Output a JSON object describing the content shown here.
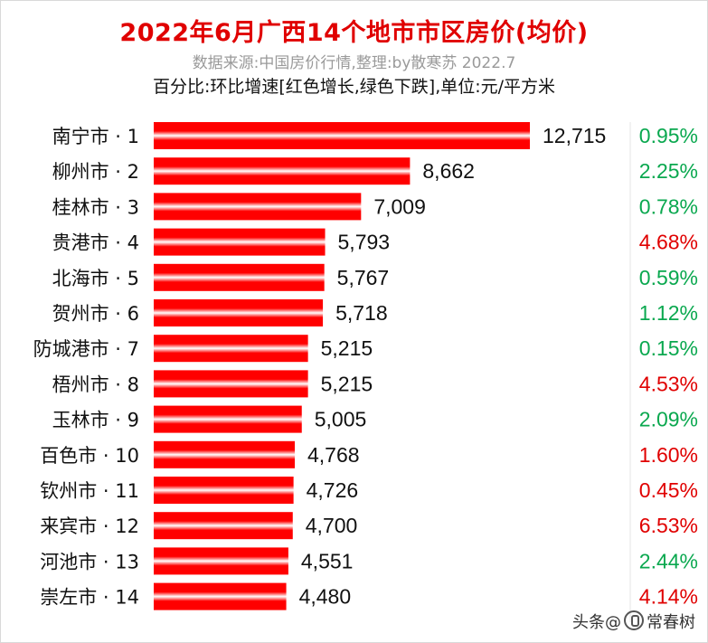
{
  "header": {
    "title": "2022年6月广西14个地市市区房价(均价)",
    "source": "数据来源:中国房价行情,整理:by散寒苏 2022.7",
    "legend_note": "百分比:环比增速[红色增长,绿色下跌],单位:元/平方米"
  },
  "watermark": {
    "prefix": "头条",
    "at": "@",
    "author": "常春树"
  },
  "colors": {
    "bar": "#ff0000",
    "bar_highlight": "#ffffff",
    "up": "#e00000",
    "down": "#0aa84f"
  },
  "chart_data": {
    "type": "bar",
    "orientation": "horizontal",
    "categories": [
      "南宁市 · 1",
      "柳州市 · 2",
      "桂林市 · 3",
      "贵港市 · 4",
      "北海市 · 5",
      "贺州市 · 6",
      "防城港市 · 7",
      "梧州市 · 8",
      "玉林市 · 9",
      "百色市 · 10",
      "钦州市 · 11",
      "来宾市 · 12",
      "河池市 · 13",
      "崇左市 · 14"
    ],
    "values": [
      12715,
      8662,
      7009,
      5793,
      5767,
      5718,
      5215,
      5215,
      5005,
      4768,
      4726,
      4700,
      4551,
      4480
    ],
    "value_labels": [
      "12,715",
      "8,662",
      "7,009",
      "5,793",
      "5,767",
      "5,718",
      "5,215",
      "5,215",
      "5,005",
      "4,768",
      "4,726",
      "4,700",
      "4,551",
      "4,480"
    ],
    "mom_change": [
      "0.95%",
      "2.25%",
      "0.78%",
      "4.68%",
      "0.59%",
      "1.12%",
      "0.15%",
      "4.53%",
      "2.09%",
      "1.60%",
      "0.45%",
      "6.53%",
      "2.44%",
      "4.14%"
    ],
    "mom_direction": [
      "down",
      "down",
      "down",
      "up",
      "down",
      "down",
      "down",
      "up",
      "down",
      "up",
      "up",
      "up",
      "down",
      "up"
    ],
    "xlim": [
      0,
      12715
    ],
    "grid": false,
    "legend": "none"
  }
}
